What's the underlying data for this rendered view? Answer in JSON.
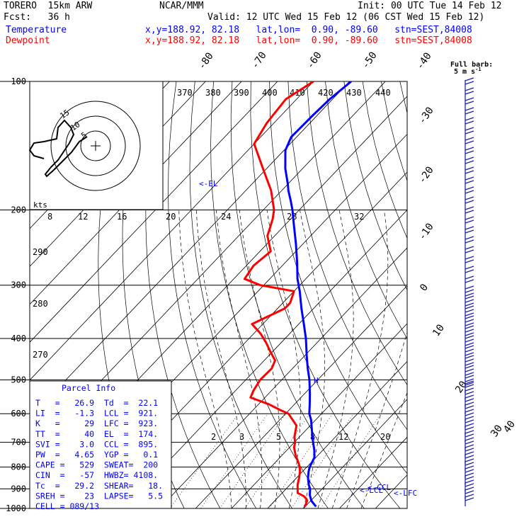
{
  "header": {
    "model": "TORERO  15km ARW",
    "org": "NCAR/MMM",
    "init": "Init: 00 UTC Tue 14 Feb 12",
    "fcst": "Fcst:   36 h",
    "valid": "Valid: 12 UTC Wed 15 Feb 12 (06 CST Wed 15 Feb 12)",
    "rows": [
      {
        "label": "Temperature",
        "info": "x,y=188.92, 82.18   lat,lon=  0.90, -89.60   stn=SEST,84008",
        "color": "#0000ff"
      },
      {
        "label": "Dewpoint",
        "info": "x,y=188.92, 82.18   lat,lon=  0.90, -89.60   stn=SEST,84008",
        "color": "#ff0000"
      }
    ]
  },
  "wind_key": {
    "title": "Full barb:",
    "value": "5 m s",
    "exp": "-1"
  },
  "parcel_info": {
    "title": "Parcel Info",
    "rows": [
      "T   =   26.9  Td  =  22.1",
      "LI  =   -1.3  LCL =  921.",
      "K   =     29  LFC =  923.",
      "TT  =     40  EL  =  174.",
      "SVI =    3.0  CCL =  895.",
      "PW  =   4.65  YGP =   0.1",
      "CAPE =   529  SWEAT=  200",
      "CIN  =   -57  HWBZ= 4108.",
      "Tc  =   29.2  SHEAR=   18.",
      "SREH =    23  LAPSE=   5.5",
      "CELL = 089/13"
    ]
  },
  "hodograph": {
    "units": "kts",
    "ring_labels": [
      "5",
      "10",
      "15"
    ]
  },
  "chart_data": {
    "type": "line",
    "chart_kind": "skew-T log-P sounding",
    "y_axis": {
      "label": "",
      "scale": "log",
      "range": [
        100,
        1000
      ],
      "ticks": [
        "100",
        "200",
        "300",
        "400",
        "500",
        "600",
        "700",
        "800",
        "900",
        "1000"
      ]
    },
    "isotherm_labels": [
      "-80",
      "-70",
      "-60",
      "-50",
      "-40",
      "-30",
      "-20",
      "-10",
      "0",
      "10",
      "20",
      "30",
      "40"
    ],
    "theta_labels": [
      "370",
      "380",
      "390",
      "400",
      "410",
      "420",
      "430",
      "440"
    ],
    "theta_labels_mid": [
      "290",
      "280",
      "270"
    ],
    "mixing_ratio_labels_upper": [
      "8",
      "12",
      "16",
      "20",
      "24",
      "28",
      "32"
    ],
    "mixing_ratio_labels_lower": [
      "2",
      "3",
      "5",
      "8",
      "12",
      "20"
    ],
    "annotations": [
      "EL",
      "LCL",
      "CCL",
      "LFC",
      "H"
    ],
    "series": [
      {
        "name": "Temperature",
        "color": "#0000ff",
        "p": [
          990,
          960,
          930,
          900,
          880,
          850,
          820,
          800,
          760,
          730,
          700,
          680,
          650,
          620,
          600,
          570,
          540,
          500,
          470,
          440,
          400,
          370,
          340,
          310,
          290,
          265,
          240,
          215,
          200,
          190,
          180,
          174,
          160,
          145,
          135,
          120,
          110,
          100
        ],
        "t": [
          23.0,
          20.2,
          18.2,
          16.7,
          15.2,
          13.3,
          11.7,
          10.8,
          9.6,
          7.6,
          5.2,
          3.6,
          1.2,
          -1.3,
          -3.4,
          -5.8,
          -8.4,
          -12.3,
          -15.8,
          -19.3,
          -24.2,
          -28.6,
          -33.4,
          -38.4,
          -42.3,
          -46.8,
          -52.0,
          -58.0,
          -61.9,
          -64.9,
          -68.2,
          -70.0,
          -74.8,
          -79.6,
          -81.5,
          -81.2,
          -80.8,
          -79.5
        ]
      },
      {
        "name": "Dewpoint",
        "color": "#ff0000",
        "p": [
          990,
          960,
          950,
          935,
          920,
          900,
          880,
          850,
          820,
          800,
          780,
          750,
          720,
          700,
          680,
          640,
          600,
          590,
          570,
          550,
          530,
          500,
          470,
          450,
          430,
          410,
          390,
          370,
          340,
          330,
          310,
          300,
          290,
          270,
          250,
          230,
          210,
          200,
          180,
          160,
          140,
          125,
          110,
          100
        ],
        "t": [
          19.9,
          19.0,
          18.3,
          16.7,
          14.3,
          13.2,
          12.1,
          10.8,
          9.3,
          8.0,
          6.4,
          3.7,
          1.3,
          0.2,
          -1.4,
          -3.8,
          -9.2,
          -12.0,
          -17.2,
          -24.0,
          -25.0,
          -26.0,
          -25.8,
          -27.0,
          -30.5,
          -34.0,
          -38.0,
          -43.0,
          -38.0,
          -38.0,
          -40.0,
          -51.0,
          -57.0,
          -58.0,
          -57.0,
          -62.0,
          -65.0,
          -67.0,
          -73.0,
          -81.0,
          -90.0,
          -92.0,
          -93.0,
          -90.0
        ]
      }
    ]
  }
}
